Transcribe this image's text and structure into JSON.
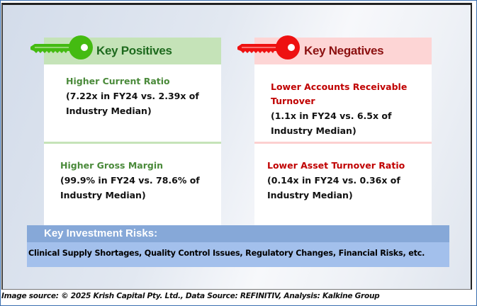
{
  "positives": {
    "title": "Key Positives",
    "icon": "key-icon",
    "accent_color": "#44bb11",
    "items": [
      {
        "title": "Higher Current Ratio",
        "desc_line1": "(7.22x in FY24 vs. 2.39x of",
        "desc_line2": "Industry Median)"
      },
      {
        "title": "Higher Gross Margin",
        "desc_line1": "(99.9% in FY24 vs. 78.6% of",
        "desc_line2": "Industry Median)"
      }
    ]
  },
  "negatives": {
    "title": "Key Negatives",
    "icon": "key-icon",
    "accent_color": "#ee1111",
    "items": [
      {
        "title_line1": "Lower Accounts Receivable",
        "title_line2": "Turnover",
        "desc_line1": "(1.1x in FY24 vs. 6.5x of",
        "desc_line2": "Industry Median)"
      },
      {
        "title": "Lower Asset Turnover Ratio",
        "desc_line1": "(0.14x in FY24 vs. 0.36x of",
        "desc_line2": "Industry Median)"
      }
    ]
  },
  "risks": {
    "title": "Key Investment Risks:",
    "body": "Clinical Supply Shortages, Quality Control Issues, Regulatory Changes, Financial Risks, etc."
  },
  "footer": {
    "text": "Image source: © 2025 Krish Capital Pty. Ltd., Data Source: REFINITIV, Analysis: Kalkine Group"
  }
}
